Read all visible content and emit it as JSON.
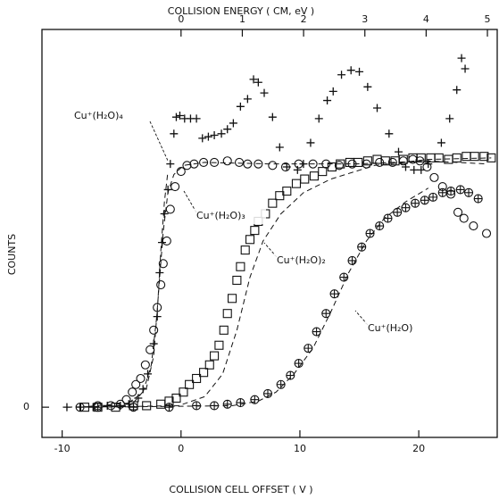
{
  "chart_data": {
    "type": "scatter",
    "title": "COLLISION ENERGY ( CM, eV )",
    "x_label": "COLLISION CELL OFFSET ( V )",
    "y_label": "COUNTS",
    "xlim": [
      -11.7,
      26.6
    ],
    "xticks": [
      -10,
      0,
      10,
      20
    ],
    "x2lim": [
      -2.27,
      5.16
    ],
    "x2ticks": [
      0,
      1,
      2,
      3,
      4,
      5
    ],
    "ylim": [
      -0.2,
      2.5
    ],
    "yticks": [
      0
    ],
    "color": "#111111",
    "series": [
      {
        "name": "Cu⁺(H₂O)₄",
        "marker": "plus",
        "x": [
          -9.6,
          -8.5,
          -7.4,
          -6.2,
          -5.1,
          -4.4,
          -3.6,
          -3.2,
          -2.8,
          -2.3,
          -2.0,
          -1.8,
          -1.6,
          -1.4,
          -1.1,
          -0.9,
          -0.6,
          -0.4,
          -0.1,
          0.3,
          0.8,
          1.3,
          1.8,
          2.3,
          2.8,
          3.4,
          3.9,
          4.4,
          5.0,
          5.6,
          6.1,
          6.5,
          7.0,
          7.7,
          8.3,
          8.9,
          9.8,
          10.3,
          10.9,
          11.6,
          12.3,
          12.8,
          13.5,
          14.3,
          15.0,
          15.7,
          16.5,
          17.5,
          18.3,
          18.9,
          19.6,
          20.2,
          20.8,
          21.9,
          22.6,
          23.2,
          23.6,
          23.9
        ],
        "values": [
          0,
          0,
          0,
          0.01,
          0.01,
          0.02,
          0.06,
          0.12,
          0.22,
          0.42,
          0.6,
          0.89,
          1.09,
          1.28,
          1.44,
          1.61,
          1.81,
          1.92,
          1.93,
          1.91,
          1.91,
          1.91,
          1.78,
          1.79,
          1.8,
          1.81,
          1.84,
          1.88,
          1.99,
          2.04,
          2.17,
          2.15,
          2.08,
          1.92,
          1.72,
          1.59,
          1.57,
          1.61,
          1.75,
          1.91,
          2.03,
          2.09,
          2.2,
          2.23,
          2.22,
          2.12,
          1.98,
          1.81,
          1.69,
          1.59,
          1.57,
          1.57,
          1.61,
          1.75,
          1.91,
          2.1,
          2.31,
          2.24
        ]
      },
      {
        "name": "Cu⁺(H₂O)₃",
        "marker": "circle",
        "x": [
          -8.5,
          -7.0,
          -5.9,
          -5.1,
          -4.6,
          -4.1,
          -3.8,
          -3.4,
          -3.0,
          -2.6,
          -2.3,
          -2.0,
          -1.7,
          -1.5,
          -1.2,
          -0.9,
          -0.5,
          0,
          0.5,
          1.1,
          1.9,
          2.8,
          3.9,
          4.9,
          5.6,
          6.5,
          7.7,
          8.8,
          9.9,
          11.1,
          12.2,
          13.3,
          14.4,
          15.6,
          16.7,
          17.8,
          18.7,
          19.5,
          20.1,
          20.7,
          21.3,
          22.0,
          22.7,
          23.3,
          23.8,
          24.6,
          25.7
        ],
        "values": [
          0,
          0.01,
          0.01,
          0.02,
          0.05,
          0.1,
          0.15,
          0.19,
          0.28,
          0.38,
          0.51,
          0.66,
          0.81,
          0.95,
          1.1,
          1.31,
          1.46,
          1.56,
          1.6,
          1.61,
          1.62,
          1.62,
          1.63,
          1.62,
          1.61,
          1.61,
          1.6,
          1.59,
          1.61,
          1.61,
          1.61,
          1.6,
          1.61,
          1.61,
          1.62,
          1.62,
          1.63,
          1.64,
          1.63,
          1.59,
          1.52,
          1.46,
          1.41,
          1.29,
          1.25,
          1.2,
          1.15
        ]
      },
      {
        "name": "Cu⁺(H₂O)₂",
        "marker": "square",
        "x": [
          -8.1,
          -7.0,
          -5.5,
          -4.0,
          -2.9,
          -1.7,
          -1.0,
          -0.4,
          0.2,
          0.7,
          1.3,
          1.9,
          2.4,
          2.8,
          3.2,
          3.6,
          3.9,
          4.3,
          4.7,
          5.0,
          5.4,
          5.8,
          6.2,
          6.5,
          7.1,
          7.7,
          8.3,
          8.9,
          9.7,
          10.4,
          11.2,
          11.9,
          12.7,
          13.4,
          14.2,
          14.9,
          15.7,
          16.5,
          17.2,
          18.0,
          18.7,
          19.5,
          20.2,
          21.0,
          21.7,
          22.5,
          23.2,
          24.0,
          24.7,
          25.5,
          26.1
        ],
        "values": [
          0,
          0,
          0,
          0.01,
          0.01,
          0.02,
          0.04,
          0.06,
          0.1,
          0.15,
          0.19,
          0.23,
          0.28,
          0.34,
          0.41,
          0.51,
          0.62,
          0.72,
          0.84,
          0.93,
          1.04,
          1.11,
          1.17,
          1.23,
          1.28,
          1.35,
          1.4,
          1.43,
          1.48,
          1.51,
          1.53,
          1.56,
          1.59,
          1.61,
          1.62,
          1.62,
          1.63,
          1.64,
          1.63,
          1.63,
          1.64,
          1.65,
          1.65,
          1.65,
          1.65,
          1.64,
          1.65,
          1.66,
          1.66,
          1.66,
          1.65
        ]
      },
      {
        "name": "Cu⁺(H₂O)",
        "marker": "circle-plus",
        "x": [
          -7.0,
          -4.0,
          -1.0,
          1.3,
          2.8,
          3.9,
          5.0,
          6.2,
          7.3,
          8.4,
          9.2,
          9.9,
          10.7,
          11.4,
          12.2,
          12.9,
          13.7,
          14.4,
          15.2,
          15.9,
          16.7,
          17.4,
          18.2,
          18.9,
          19.7,
          20.5,
          21.2,
          22.0,
          22.7,
          23.5,
          24.2,
          25.0
        ],
        "values": [
          0,
          0,
          0,
          0.01,
          0.01,
          0.02,
          0.03,
          0.05,
          0.09,
          0.15,
          0.21,
          0.29,
          0.39,
          0.5,
          0.62,
          0.75,
          0.86,
          0.97,
          1.06,
          1.15,
          1.2,
          1.25,
          1.29,
          1.32,
          1.35,
          1.37,
          1.39,
          1.42,
          1.43,
          1.44,
          1.42,
          1.38
        ]
      }
    ],
    "fits": [
      {
        "x": [
          -9.6,
          -4.7,
          -3.2,
          -2.5,
          -2.0,
          -1.7,
          -1.4,
          -1.1
        ],
        "values": [
          0,
          0.01,
          0.1,
          0.28,
          0.63,
          1.04,
          1.36,
          1.56
        ]
      },
      {
        "x": [
          -8.5,
          -4.0,
          -2.9,
          -2.3,
          -1.9,
          -1.5,
          -1.1,
          -0.6,
          0.2,
          2.0,
          7.3,
          14.8,
          20.8,
          25.7
        ],
        "values": [
          0,
          0.03,
          0.13,
          0.34,
          0.75,
          1.16,
          1.42,
          1.54,
          1.6,
          1.62,
          1.61,
          1.61,
          1.63,
          1.61
        ]
      },
      {
        "x": [
          -8.1,
          -0.2,
          2.0,
          3.5,
          4.7,
          5.8,
          6.9,
          8.4,
          10.3,
          12.6,
          16.3,
          20.8,
          26.1
        ],
        "values": [
          0,
          0.01,
          0.07,
          0.22,
          0.51,
          0.86,
          1.1,
          1.28,
          1.42,
          1.51,
          1.6,
          1.64,
          1.65
        ]
      },
      {
        "x": [
          -7.0,
          4.3,
          6.5,
          8.0,
          9.5,
          11.1,
          12.6,
          14.1,
          15.6,
          17.1,
          18.9,
          20.8
        ],
        "values": [
          0,
          0.01,
          0.04,
          0.1,
          0.22,
          0.39,
          0.63,
          0.89,
          1.1,
          1.25,
          1.36,
          1.45
        ]
      }
    ]
  }
}
